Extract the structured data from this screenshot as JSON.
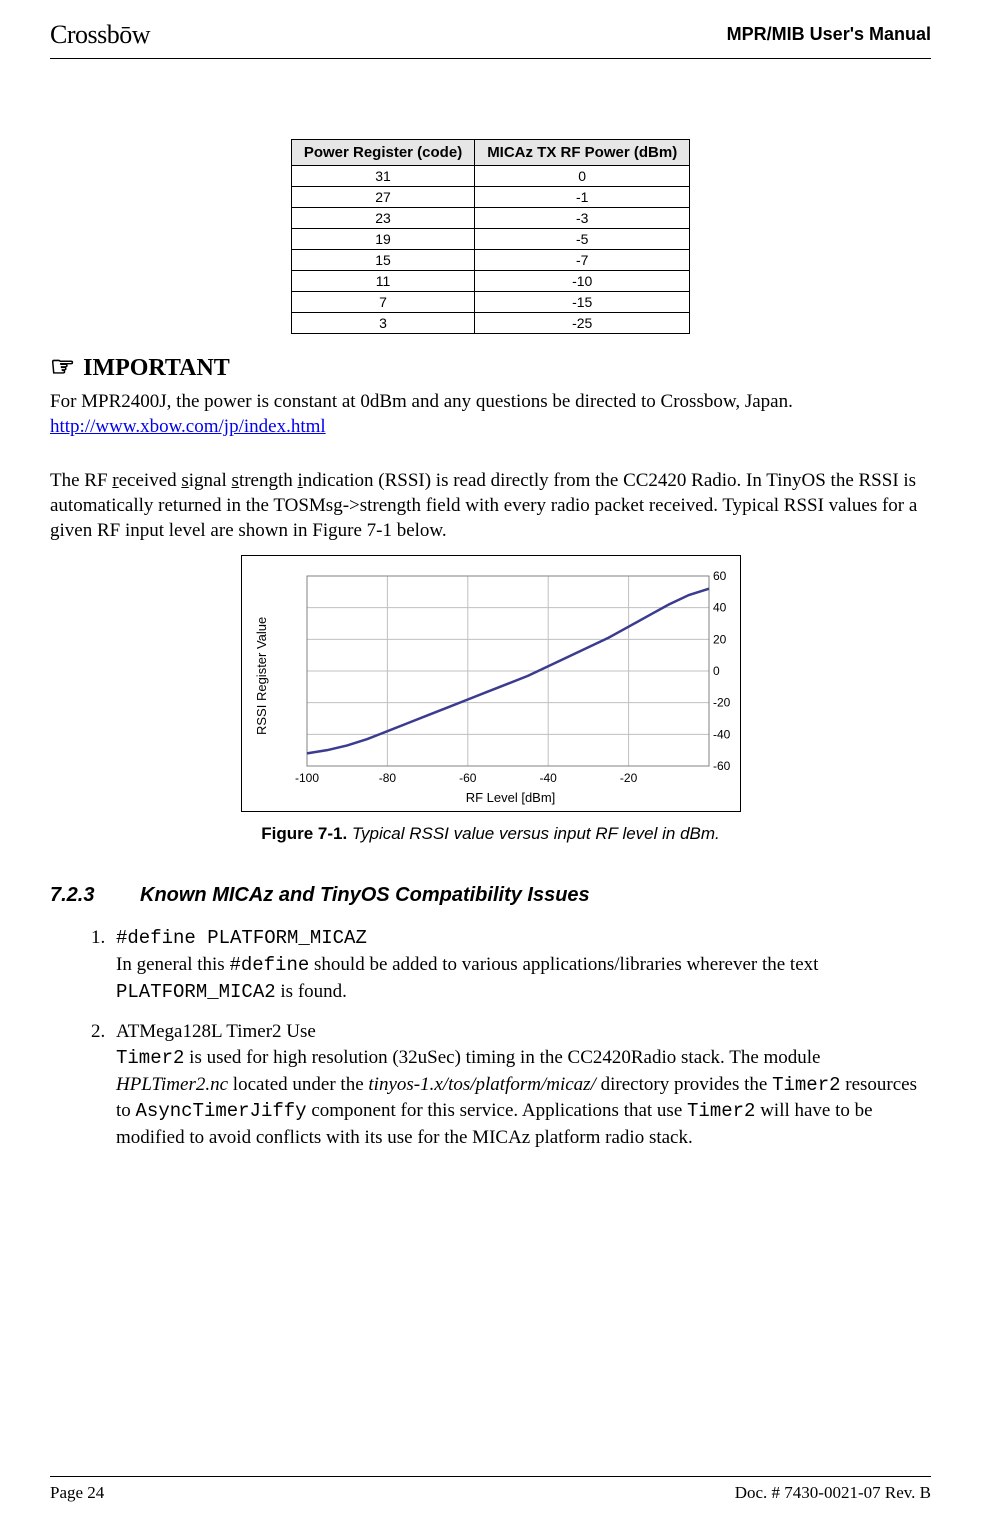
{
  "header": {
    "logo_text": "Crossbōw",
    "title": "MPR/MIB User's Manual"
  },
  "table": {
    "columns": [
      "Power Register (code)",
      "MICAz TX RF Power (dBm)"
    ],
    "rows": [
      [
        "31",
        "0"
      ],
      [
        "27",
        "-1"
      ],
      [
        "23",
        "-3"
      ],
      [
        "19",
        "-5"
      ],
      [
        "15",
        "-7"
      ],
      [
        "11",
        "-10"
      ],
      [
        "7",
        "-15"
      ],
      [
        "3",
        "-25"
      ]
    ],
    "header_bg": "#e6e6e6",
    "border_color": "#000000"
  },
  "important": {
    "heading": "IMPORTANT",
    "icon": "☞",
    "text_before_link": "For MPR2400J, the power is constant at 0dBm and any questions be directed to Crossbow, Japan. ",
    "link_text": "http://www.xbow.com/jp/index.html",
    "link_color": "#0000ee"
  },
  "rssi_paragraph": {
    "text": "The RF received signal strength indication (RSSI) is read directly from the CC2420 Radio. In TinyOS the RSSI is automatically returned in the TOSMsg->strength field with every radio packet received. Typical RSSI values for a given RF input level are shown in Figure 7-1 below."
  },
  "chart": {
    "type": "line",
    "xlabel": "RF Level [dBm]",
    "ylabel": "RSSI Register Value",
    "xlim": [
      -100,
      0
    ],
    "ylim": [
      -60,
      60
    ],
    "xtick_step": 20,
    "ytick_step": 20,
    "xticks": [
      -100,
      -80,
      -60,
      -40,
      -20
    ],
    "yticks": [
      -60,
      -40,
      -20,
      0,
      20,
      40,
      60
    ],
    "grid_color": "#c0c0c0",
    "line_color": "#3b3b8f",
    "line_width": 2.5,
    "background_color": "#ffffff",
    "border_color": "#000000",
    "label_fontsize": 13,
    "tick_fontsize": 12,
    "data_x": [
      -100,
      -95,
      -90,
      -85,
      -80,
      -75,
      -70,
      -65,
      -60,
      -55,
      -50,
      -45,
      -40,
      -35,
      -30,
      -25,
      -20,
      -15,
      -10,
      -5,
      0
    ],
    "data_y": [
      -52,
      -50,
      -47,
      -43,
      -38,
      -33,
      -28,
      -23,
      -18,
      -13,
      -8,
      -3,
      3,
      9,
      15,
      21,
      28,
      35,
      42,
      48,
      52
    ]
  },
  "figure_caption": {
    "bold": "Figure 7-1.",
    "italic": " Typical RSSI value versus input RF level in dBm."
  },
  "section": {
    "number": "7.2.3",
    "title": "Known MICAz and TinyOS Compatibility Issues"
  },
  "list": {
    "item1": {
      "code_line": "#define PLATFORM_MICAZ",
      "text_p1": "In general this ",
      "code_inline1": "#define",
      "text_p2": " should be added to various applications/libraries wherever the text ",
      "code_inline2": "PLATFORM_MICA2",
      "text_p3": " is found."
    },
    "item2": {
      "title": "ATMega128L Timer2 Use",
      "code1": "Timer2",
      "t1": " is used for high resolution (32uSec) timing in the CC2420Radio stack. The module ",
      "italic1": "HPLTimer2.nc",
      "t2": " located under the ",
      "italic2": "tinyos-1.x/tos/platform/micaz/",
      "t3": " directory provides the ",
      "code2": "Timer2",
      "t4": " resources to ",
      "code3": "AsyncTimerJiffy",
      "t5": " component for this service. Applications that use ",
      "code4": "Timer2",
      "t6": " will have to be modified to avoid conflicts with its use for the MICAz platform radio stack."
    }
  },
  "footer": {
    "left": "Page 24",
    "right": "Doc. # 7430-0021-07 Rev. B"
  }
}
